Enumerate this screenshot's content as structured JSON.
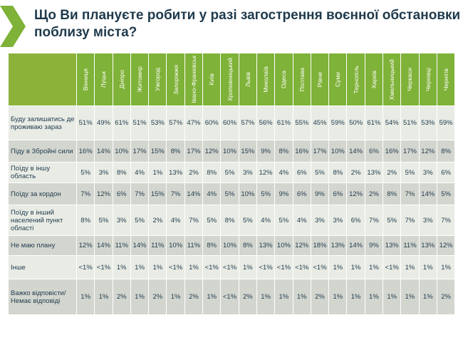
{
  "title": "Що Ви плануєте робити у разі загострення воєнної обстановки поблизу міста?",
  "colors": {
    "header_green": "#7fb238",
    "row_light": "#e9ece5",
    "row_dark": "#d3d6cf",
    "title_color": "#1f3a4d"
  },
  "cities": [
    "Вінниця",
    "Луцьк",
    "Дніпро",
    "Житомир",
    "Ужгород",
    "Запоріжжя",
    "Івано-Франківськ",
    "Київ",
    "Кропивницький",
    "Львів",
    "Миколаїв",
    "Одеса",
    "Полтава",
    "Рівне",
    "Суми",
    "Тернопіль",
    "Харків",
    "Хмельницький",
    "Черкаси",
    "Чернівці",
    "Чернігів"
  ],
  "rows": [
    {
      "label": "Буду залишатись де проживаю зараз",
      "values": [
        "51%",
        "49%",
        "61%",
        "51%",
        "53%",
        "57%",
        "47%",
        "60%",
        "60%",
        "57%",
        "56%",
        "61%",
        "55%",
        "45%",
        "59%",
        "50%",
        "61%",
        "54%",
        "51%",
        "53%",
        "59%"
      ]
    },
    {
      "label": "Піду в Збройні сили",
      "values": [
        "16%",
        "14%",
        "10%",
        "17%",
        "15%",
        "8%",
        "17%",
        "12%",
        "10%",
        "15%",
        "9%",
        "8%",
        "16%",
        "17%",
        "10%",
        "14%",
        "6%",
        "16%",
        "17%",
        "12%",
        "8%"
      ]
    },
    {
      "label": "Поїду в іншу область",
      "values": [
        "5%",
        "3%",
        "8%",
        "4%",
        "1%",
        "13%",
        "2%",
        "8%",
        "5%",
        "3%",
        "12%",
        "4%",
        "6%",
        "5%",
        "8%",
        "2%",
        "13%",
        "2%",
        "5%",
        "3%",
        "6%"
      ]
    },
    {
      "label": "Поїду за кордон",
      "values": [
        "7%",
        "12%",
        "6%",
        "7%",
        "15%",
        "7%",
        "14%",
        "4%",
        "5%",
        "10%",
        "5%",
        "9%",
        "6%",
        "9%",
        "6%",
        "12%",
        "2%",
        "8%",
        "7%",
        "14%",
        "5%"
      ]
    },
    {
      "label": "Поїду в інший населений пункт області",
      "values": [
        "8%",
        "5%",
        "3%",
        "5%",
        "2%",
        "4%",
        "7%",
        "5%",
        "8%",
        "5%",
        "4%",
        "5%",
        "4%",
        "3%",
        "3%",
        "6%",
        "7%",
        "5%",
        "7%",
        "3%",
        "7%"
      ]
    },
    {
      "label": "Не маю плану",
      "values": [
        "12%",
        "14%",
        "11%",
        "14%",
        "11%",
        "10%",
        "11%",
        "8%",
        "10%",
        "8%",
        "13%",
        "10%",
        "12%",
        "18%",
        "13%",
        "14%",
        "9%",
        "13%",
        "11%",
        "13%",
        "12%"
      ]
    },
    {
      "label": "Інше",
      "values": [
        "<1%",
        "<1%",
        "1%",
        "1%",
        "1%",
        "<1%",
        "1%",
        "<1%",
        "<1%",
        "1%",
        "<1%",
        "<1%",
        "<1%",
        "<1%",
        "1%",
        "1%",
        "1%",
        "<1%",
        "1%",
        "1%",
        "1%"
      ]
    },
    {
      "label": "Важко відповісти/Немає відповіді",
      "values": [
        "1%",
        "1%",
        "2%",
        "1%",
        "2%",
        "1%",
        "2%",
        "1%",
        "<1%",
        "2%",
        "1%",
        "1%",
        "1%",
        "2%",
        "1%",
        "1%",
        "1%",
        "1%",
        "1%",
        "1%",
        "2%"
      ]
    }
  ]
}
